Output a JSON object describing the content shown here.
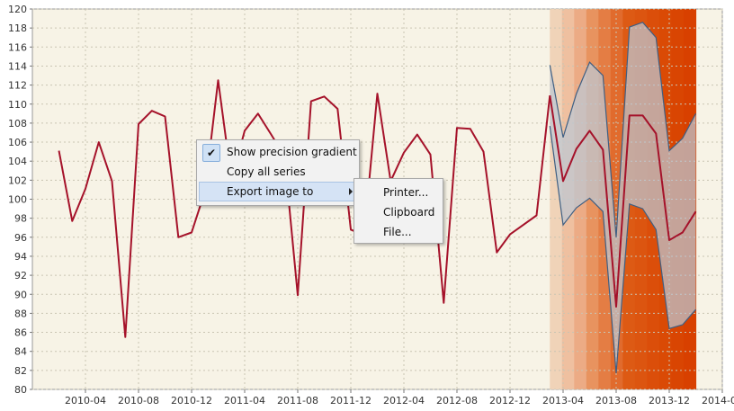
{
  "chart_data": {
    "type": "line",
    "title": "",
    "xlabel": "",
    "ylabel": "",
    "ylim": [
      80,
      120
    ],
    "xlim": [
      "2009-12-01",
      "2014-04-01"
    ],
    "grid": true,
    "background": "#f7f3e6",
    "x_ticks": [
      "2010-04",
      "2010-08",
      "2010-12",
      "2011-04",
      "2011-08",
      "2011-12",
      "2012-04",
      "2012-08",
      "2012-12",
      "2013-04",
      "2013-08",
      "2013-12",
      "2014-04"
    ],
    "y_ticks": [
      80,
      82,
      84,
      86,
      88,
      90,
      92,
      94,
      96,
      98,
      100,
      102,
      104,
      106,
      108,
      110,
      112,
      114,
      116,
      118,
      120
    ],
    "series": [
      {
        "color": "#a5122a",
        "x": [
          "2010-02",
          "2010-03",
          "2010-04",
          "2010-05",
          "2010-06",
          "2010-07",
          "2010-08",
          "2010-09",
          "2010-10",
          "2010-11",
          "2010-12",
          "2011-01",
          "2011-02",
          "2011-03",
          "2011-04",
          "2011-05",
          "2011-06",
          "2011-07",
          "2011-08",
          "2011-09",
          "2011-10",
          "2011-11",
          "2011-12",
          "2012-01",
          "2012-02",
          "2012-03",
          "2012-04",
          "2012-05",
          "2012-06",
          "2012-07",
          "2012-08",
          "2012-09",
          "2012-10",
          "2012-11",
          "2012-12",
          "2013-02",
          "2013-03"
        ],
        "values": [
          105.1,
          97.7,
          101.1,
          106.0,
          101.9,
          85.5,
          107.9,
          109.3,
          108.7,
          96.0,
          96.5,
          100.8,
          112.5,
          102.0,
          107.2,
          109.0,
          106.8,
          104.5,
          89.9,
          110.3,
          110.8,
          109.5,
          96.8,
          96.2,
          111.1,
          101.9,
          104.9,
          106.8,
          104.7,
          89.1,
          107.5,
          107.4,
          105.0,
          94.4,
          96.3,
          98.3,
          110.9
        ]
      },
      {
        "color": "#a5122a",
        "x": [
          "2013-03",
          "2013-04",
          "2013-05",
          "2013-06",
          "2013-07",
          "2013-08",
          "2013-09",
          "2013-10",
          "2013-11",
          "2013-12",
          "2014-01",
          "2014-02"
        ],
        "values": [
          110.9,
          101.9,
          105.3,
          107.2,
          105.2,
          88.7,
          108.8,
          108.8,
          106.9,
          95.7,
          96.5,
          98.7
        ]
      }
    ],
    "forecast_band": {
      "x": [
        "2013-03",
        "2013-04",
        "2013-05",
        "2013-06",
        "2013-07",
        "2013-08",
        "2013-09",
        "2013-10",
        "2013-11",
        "2013-12",
        "2014-01",
        "2014-02"
      ],
      "upper": [
        114.1,
        106.5,
        111.1,
        114.4,
        113.0,
        96.0,
        118.1,
        118.6,
        117.0,
        105.1,
        106.4,
        109.0
      ],
      "lower": [
        107.7,
        97.3,
        99.1,
        100.1,
        98.7,
        81.7,
        99.5,
        99.0,
        96.8,
        86.4,
        86.8,
        88.4
      ]
    },
    "precision_gradient": {
      "x_start": "2013-03",
      "x_end": "2014-02",
      "colors": [
        "#f0d3b8",
        "#efc0a0",
        "#ecab85",
        "#e8935f",
        "#e47d44",
        "#e16b2d",
        "#dd5a14",
        "#dc5510",
        "#db4e0a",
        "#da4a05",
        "#d94502",
        "#d84000"
      ]
    }
  },
  "context_menu": {
    "items": [
      {
        "label": "Show precision gradient",
        "checked": true
      },
      {
        "label": "Copy all series"
      },
      {
        "label": "Export image to",
        "submenu": true
      }
    ],
    "submenu": {
      "items": [
        {
          "label": "Printer..."
        },
        {
          "label": "Clipboard"
        },
        {
          "label": "File..."
        }
      ]
    }
  }
}
